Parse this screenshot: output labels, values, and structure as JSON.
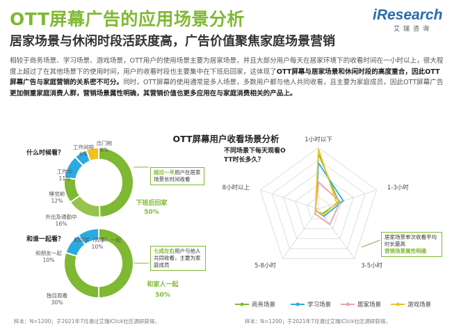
{
  "header": {
    "title": "OTT屏幕广告的应用场景分析",
    "subtitle": "居家场景与休闲时段活跃度高，广告价值聚焦家庭场景营销",
    "logo_text": "iResearch",
    "logo_sub": "艾瑞咨询"
  },
  "paragraph": {
    "p1": "相较于商务场景、学习场景、游戏场景，OTT用户的使用场景主要为居家场景，并且大部分用户每天在居家环境下的收看时间在一小时以上，很大程度上超过了在其他场景下的使用时间，用户的收看时段也主要集中在下班后回家，这体现了",
    "b1": "OTT屏幕与居家场景和休闲时段的高度重合，因此OTT屏幕广告与家庭营销的关系密不可分。",
    "p2": "同时，OTT屏幕的使用通常是多人场景，多数用户都与他人共同收看，且主要为家庭成员，因此OTT屏幕广告",
    "b2": "更加侧重家庭消费人群，营销场景属性明确，其营销价值也更多应用在与家庭消费相关的产品上。"
  },
  "section_title": "OTT屏幕用户收看场景分析",
  "colors": {
    "green": "#7fb832",
    "blue": "#29abe2",
    "pink": "#e8a4a8",
    "yellow": "#f2c21b"
  },
  "chart_data": [
    {
      "type": "pie",
      "question": "什么时候看？",
      "labels": [
        "下班后回家",
        "外出及通勤中",
        "睡觉前",
        "工作中",
        "工作间隙",
        "出门前"
      ],
      "label_texts": [
        "外出及通勤中\n16%",
        "睡觉前\n12%",
        "工作中\n11%",
        "工作间隙\n6%",
        "出门前\n6%"
      ],
      "values": [
        50,
        16,
        12,
        11,
        6,
        6
      ],
      "colors": [
        "#7fb832",
        "#95c34b",
        "#7fb832",
        "#29abe2",
        "#29abe2",
        "#f2c21b"
      ],
      "callout": {
        "pre": "超过一半",
        "post": "用户在居家场景长时间收看"
      },
      "main_label": "下班后回家",
      "main_value": "50%"
    },
    {
      "type": "pie",
      "question": "和谁一起看？",
      "labels": [
        "和家人一起",
        "独自观看",
        "和朋友一起",
        "和同学（同事）一起"
      ],
      "label_texts": [
        "独自观看\n30%",
        "和朋友一起\n10%",
        "和同学（同事）一起\n10%"
      ],
      "values": [
        50,
        30,
        10,
        10
      ],
      "colors": [
        "#7fb832",
        "#7fb832",
        "#29abe2",
        "#29abe2"
      ],
      "callout": {
        "pre": "七成左右",
        "post": "用户与他人共同收看，主要为家庭成员"
      },
      "main_label": "和家人一起",
      "main_value": "50%"
    },
    {
      "type": "radar",
      "question": "不同场景下每天观看OTT时长多久？",
      "axes": [
        "1小时以下",
        "1-3小时",
        "3-5小时",
        "5-8小时",
        "8小时以上"
      ],
      "series": [
        {
          "name": "商务场景",
          "color": "#7fb832",
          "values": [
            72,
            28,
            8,
            4,
            4
          ]
        },
        {
          "name": "学习场景",
          "color": "#29abe2",
          "values": [
            60,
            34,
            12,
            4,
            4
          ]
        },
        {
          "name": "居家场景",
          "color": "#e8a4a8",
          "values": [
            35,
            30,
            25,
            8,
            4
          ]
        },
        {
          "name": "游戏场景",
          "color": "#f2c21b",
          "values": [
            78,
            25,
            10,
            4,
            4
          ]
        }
      ],
      "max": 80,
      "callout": {
        "text": "居家场景单次收看平均时长最高",
        "highlight": "营销场景属性明确"
      }
    }
  ],
  "notes": {
    "left": "样本：N=1200；于2021年7月通过艾瑞iClick社区调研获得。",
    "right": "样本：N=1200；于2021年7月通过艾瑞iClick社区调研获得。"
  }
}
